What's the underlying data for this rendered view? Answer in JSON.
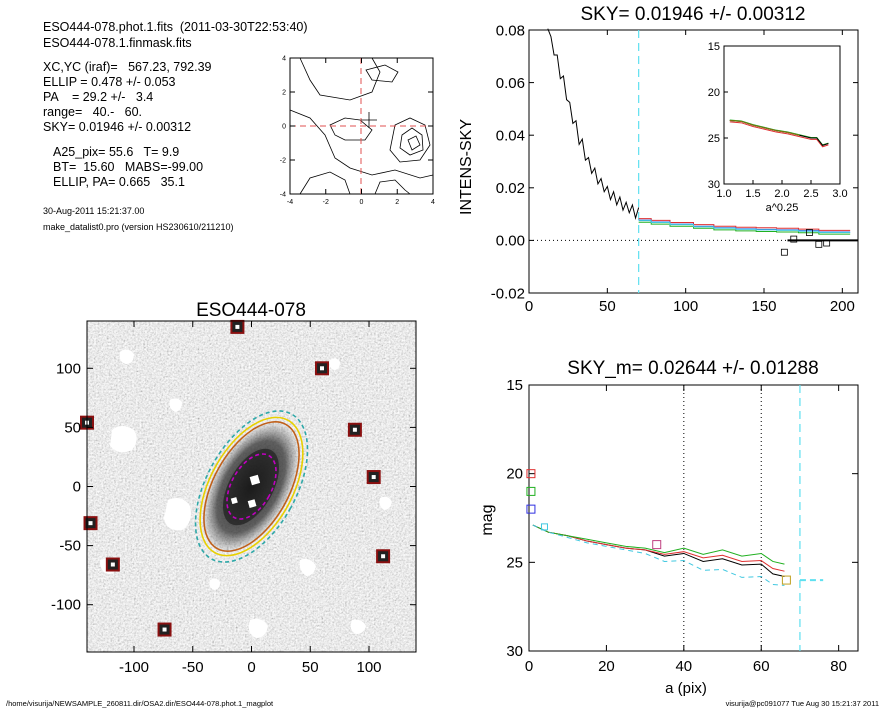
{
  "info": {
    "file_line": "ESO444-078.phot.1.fits  (2011-03-30T22:53:40)",
    "mask_line": "ESO444-078.1.finmask.fits",
    "xcyc": "XC,YC (iraf)=   567.23, 792.39",
    "ellip": "ELLIP = 0.478 +/- 0.053",
    "pa": "PA    = 29.2 +/-   3.4",
    "range": "range=   40.-   60.",
    "sky": "SKY= 0.01946 +/- 0.00312",
    "a25": "A25_pix= 55.6   T= 9.9",
    "bt": "BT=  15.60   MABS=-99.00",
    "ellip_pa": "ELLIP, PA= 0.665   35.1",
    "date": "30-Aug-2011 15:21:37.00",
    "program": "make_datalist0.pro (version HS230610/211210)"
  },
  "footer": {
    "left": "/home/visurija/NEWSAMPLE_260811.dir/OSA2.dir/ESO444-078.phot.1_magplot",
    "right": "visurija@pc091077  Tue Aug 30 15:21:37 2011"
  },
  "chart_data": [
    {
      "id": "contour",
      "type": "contour",
      "xlim": [
        -4,
        4
      ],
      "ylim": [
        -4,
        4
      ],
      "xticks": [
        "-4",
        "-2",
        "0",
        "2",
        "4"
      ],
      "yticks": [
        "-4",
        "-2",
        "0",
        "2",
        "4"
      ],
      "crosshair": [
        0,
        0
      ],
      "marker": [
        0.5,
        0.3
      ],
      "peak": [
        3,
        -1
      ]
    },
    {
      "id": "sky",
      "type": "line",
      "title": "SKY= 0.01946 +/- 0.00312",
      "ylabel": "INTENS-SKY",
      "xlim": [
        0,
        210
      ],
      "ylim": [
        -0.02,
        0.08
      ],
      "xticks": [
        "0",
        "50",
        "100",
        "150",
        "200"
      ],
      "yticks": [
        "-0.02",
        "0.00",
        "0.02",
        "0.04",
        "0.06",
        "0.08"
      ],
      "vline": 70,
      "profile": [
        [
          12,
          0.082
        ],
        [
          14,
          0.075
        ],
        [
          16,
          0.072
        ],
        [
          18,
          0.068
        ],
        [
          20,
          0.063
        ],
        [
          22,
          0.06
        ],
        [
          24,
          0.055
        ],
        [
          26,
          0.05
        ],
        [
          28,
          0.046
        ],
        [
          30,
          0.043
        ],
        [
          32,
          0.038
        ],
        [
          34,
          0.036
        ],
        [
          36,
          0.032
        ],
        [
          38,
          0.029
        ],
        [
          40,
          0.027
        ],
        [
          42,
          0.025
        ],
        [
          44,
          0.023
        ],
        [
          46,
          0.021
        ],
        [
          48,
          0.02
        ],
        [
          50,
          0.018
        ],
        [
          52,
          0.017
        ],
        [
          54,
          0.016
        ],
        [
          56,
          0.015
        ],
        [
          58,
          0.014
        ],
        [
          60,
          0.013
        ],
        [
          62,
          0.012
        ],
        [
          64,
          0.012
        ],
        [
          66,
          0.011
        ],
        [
          68,
          0.01
        ],
        [
          70,
          0.01
        ]
      ],
      "steps": [
        [
          70,
          0.0075
        ],
        [
          78,
          0.0068
        ],
        [
          90,
          0.006
        ],
        [
          105,
          0.0052
        ],
        [
          118,
          0.0046
        ],
        [
          132,
          0.0042
        ],
        [
          145,
          0.004
        ],
        [
          158,
          0.0038
        ],
        [
          172,
          0.0035
        ],
        [
          185,
          0.003
        ]
      ],
      "sky_level": 0.0,
      "squares": [
        [
          163,
          -0.0045
        ],
        [
          169,
          0.0005
        ],
        [
          179,
          0.003
        ],
        [
          185,
          -0.0015
        ],
        [
          190,
          -0.001
        ]
      ],
      "inset": {
        "xlim": [
          1.0,
          3.0
        ],
        "ylim": [
          15,
          30
        ],
        "xticks": [
          "1.0",
          "1.5",
          "2.0",
          "2.5",
          "3.0"
        ],
        "yticks": [
          "15",
          "20",
          "25",
          "30"
        ],
        "xlabel": "a^0.25",
        "profile": [
          [
            1.1,
            23.1
          ],
          [
            1.3,
            23.2
          ],
          [
            1.5,
            23.6
          ],
          [
            1.7,
            23.9
          ],
          [
            1.9,
            24.2
          ],
          [
            2.1,
            24.4
          ],
          [
            2.3,
            24.7
          ],
          [
            2.5,
            25.0
          ],
          [
            2.6,
            25.2
          ],
          [
            2.7,
            25.5
          ],
          [
            2.8,
            25.8
          ]
        ]
      }
    },
    {
      "id": "image",
      "type": "image",
      "title": "ESO444-078",
      "xlim": [
        -140,
        140
      ],
      "ylim": [
        -140,
        140
      ],
      "xticks": [
        "-100",
        "-50",
        "0",
        "50",
        "100"
      ],
      "yticks": [
        "-100",
        "-50",
        "0",
        "50",
        "100"
      ],
      "stars": [
        [
          -12,
          135
        ],
        [
          60,
          100
        ],
        [
          88,
          48
        ],
        [
          104,
          8
        ],
        [
          112,
          -59
        ],
        [
          -137,
          -31
        ],
        [
          -118,
          -66
        ],
        [
          -74,
          -121
        ],
        [
          -140,
          54
        ]
      ],
      "ellipses": [
        {
          "a": 70,
          "b": 38,
          "pa": 29,
          "color": "#2fa8a8"
        },
        {
          "a": 64,
          "b": 35,
          "pa": 29,
          "color": "#e8d000"
        },
        {
          "a": 60,
          "b": 32,
          "pa": 29,
          "color": "#c0601a"
        },
        {
          "a": 30,
          "b": 17,
          "pa": 29,
          "color": "#c000c0"
        }
      ]
    },
    {
      "id": "mag",
      "type": "line",
      "title": "SKY_m=  0.02644 +/- 0.01288",
      "xlabel": "a (pix)",
      "ylabel": "mag",
      "xlim": [
        0,
        85
      ],
      "ylim": [
        30,
        15
      ],
      "xticks": [
        "0",
        "20",
        "40",
        "60",
        "80"
      ],
      "yticks": [
        "15",
        "20",
        "25",
        "30"
      ],
      "vlines_dotted": [
        40,
        60
      ],
      "vline_dashed": 70,
      "series": [
        {
          "color": "#000000",
          "values": [
            [
              1,
              22.9
            ],
            [
              5,
              23.3
            ],
            [
              10,
              23.5
            ],
            [
              15,
              23.8
            ],
            [
              20,
              24.0
            ],
            [
              25,
              24.2
            ],
            [
              30,
              24.3
            ],
            [
              35,
              24.5
            ],
            [
              40,
              24.6
            ],
            [
              45,
              24.8
            ],
            [
              50,
              24.9
            ],
            [
              55,
              25.0
            ],
            [
              60,
              25.2
            ],
            [
              63,
              25.5
            ],
            [
              66,
              25.9
            ]
          ]
        },
        {
          "color": "#e03030",
          "values": [
            [
              1,
              22.9
            ],
            [
              5,
              23.3
            ],
            [
              10,
              23.5
            ],
            [
              15,
              23.8
            ],
            [
              20,
              24.0
            ],
            [
              25,
              24.2
            ],
            [
              30,
              24.3
            ],
            [
              35,
              24.4
            ],
            [
              40,
              24.5
            ],
            [
              45,
              24.6
            ],
            [
              50,
              24.7
            ],
            [
              55,
              24.8
            ],
            [
              60,
              25.0
            ],
            [
              63,
              25.2
            ],
            [
              66,
              25.6
            ]
          ]
        },
        {
          "color": "#20b020",
          "values": [
            [
              1,
              22.9
            ],
            [
              5,
              23.3
            ],
            [
              10,
              23.5
            ],
            [
              15,
              23.7
            ],
            [
              20,
              23.9
            ],
            [
              25,
              24.1
            ],
            [
              30,
              24.2
            ],
            [
              35,
              24.3
            ],
            [
              40,
              24.3
            ],
            [
              45,
              24.4
            ],
            [
              50,
              24.4
            ],
            [
              55,
              24.5
            ],
            [
              60,
              24.6
            ],
            [
              63,
              24.8
            ],
            [
              66,
              25.2
            ]
          ]
        },
        {
          "color": "#40c8e0",
          "dashed": true,
          "values": [
            [
              1,
              22.9
            ],
            [
              5,
              23.3
            ],
            [
              10,
              23.6
            ],
            [
              15,
              23.9
            ],
            [
              20,
              24.1
            ],
            [
              25,
              24.3
            ],
            [
              30,
              24.5
            ],
            [
              35,
              24.8
            ],
            [
              40,
              25.0
            ],
            [
              45,
              25.3
            ],
            [
              50,
              25.5
            ],
            [
              55,
              25.7
            ],
            [
              60,
              25.9
            ],
            [
              63,
              26.1
            ],
            [
              66,
              26.4
            ]
          ]
        }
      ],
      "left_squares": [
        [
          0.5,
          20.0,
          "#e03030"
        ],
        [
          0.5,
          21.0,
          "#20b020"
        ],
        [
          0.5,
          22.0,
          "#3030e0"
        ]
      ],
      "sky_dash": [
        [
          70,
          26.0
        ],
        [
          76,
          26.0
        ]
      ]
    }
  ]
}
